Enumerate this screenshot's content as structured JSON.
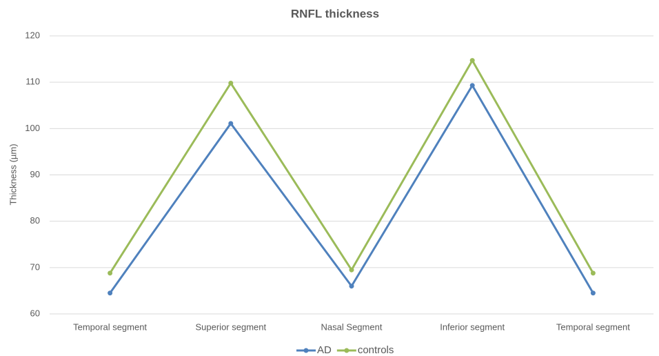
{
  "chart_data": {
    "type": "line",
    "title": "RNFL thickness",
    "y_label": "Thickness (µm)",
    "categories": [
      "Temporal segment",
      "Superior segment",
      "Nasal Segment",
      "Inferior segment",
      "Temporal segment"
    ],
    "series": [
      {
        "name": "AD",
        "color": "#4f81bd",
        "values": [
          64.5,
          101.1,
          66.0,
          109.3,
          64.5
        ]
      },
      {
        "name": "controls",
        "color": "#9bbb59",
        "values": [
          68.8,
          109.8,
          69.5,
          114.7,
          68.8
        ]
      }
    ],
    "ylim": [
      60,
      120
    ],
    "yticks": [
      60,
      70,
      80,
      90,
      100,
      110,
      120
    ],
    "grid": true,
    "legend": "bottom"
  }
}
